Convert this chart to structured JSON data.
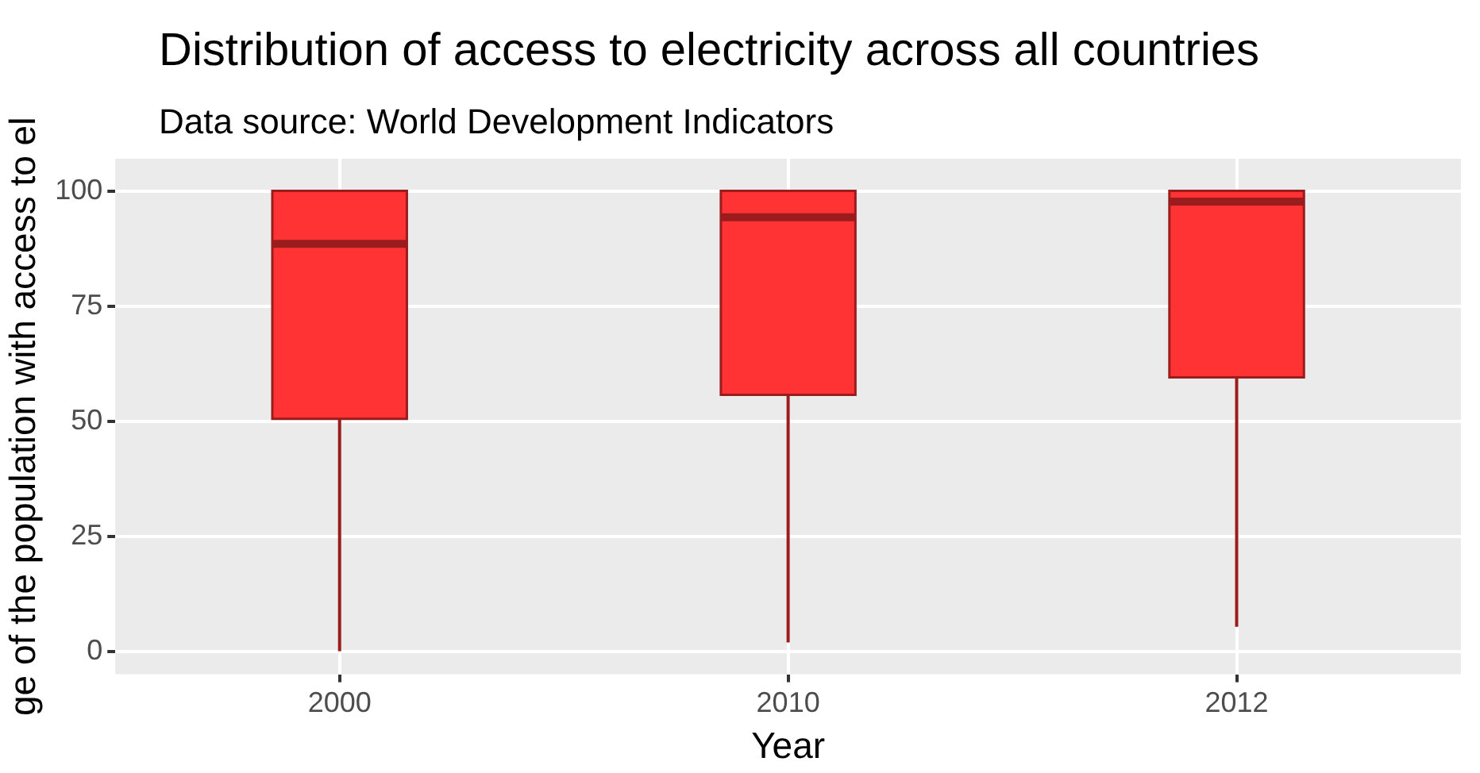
{
  "chart_data": {
    "type": "box",
    "title": "Distribution of access to electricity across all countries",
    "subtitle": "Data source: World Development Indicators",
    "xlabel": "Year",
    "ylabel": "ge of the population with access to el",
    "categories": [
      "2000",
      "2010",
      "2012"
    ],
    "series": [
      {
        "color": "#ff3333",
        "boxes": [
          {
            "low": 0,
            "q1": 50.5,
            "median": 88.5,
            "q3": 100,
            "high": 100
          },
          {
            "low": 1.9,
            "q1": 55.7,
            "median": 94.3,
            "q3": 100,
            "high": 100
          },
          {
            "low": 5.3,
            "q1": 59.5,
            "median": 97.7,
            "q3": 100,
            "high": 100
          }
        ]
      }
    ],
    "ylim": [
      -5,
      107
    ],
    "yticks": [
      0,
      25,
      50,
      75,
      100
    ],
    "grid": true
  }
}
